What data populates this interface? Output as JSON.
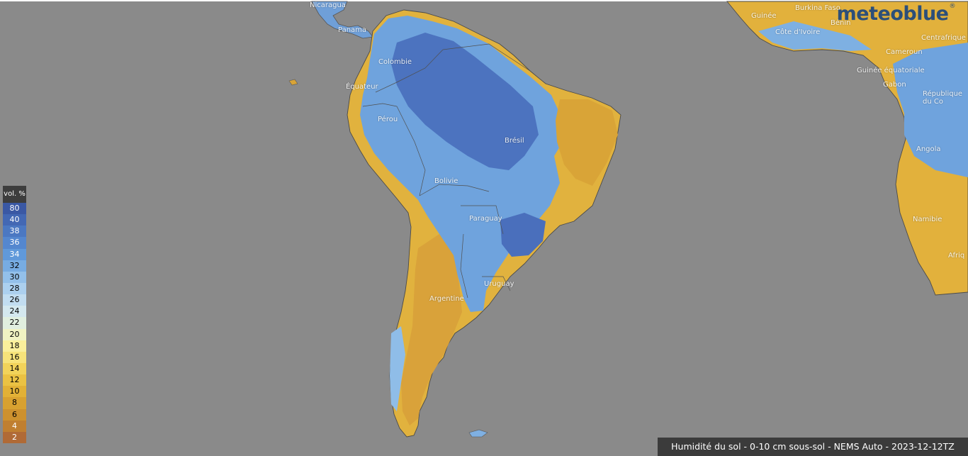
{
  "brand": {
    "name": "meteoblue",
    "mark": "®"
  },
  "caption": "Humidité du sol - 0-10 cm sous-sol - NEMS Auto - 2023-12-12TZ",
  "legend": {
    "unit": "vol. %",
    "entries": [
      {
        "value": "80",
        "color": "#3a58a4",
        "text_color": "#ffffff"
      },
      {
        "value": "40",
        "color": "#4368b4",
        "text_color": "#ffffff"
      },
      {
        "value": "38",
        "color": "#4b78c2",
        "text_color": "#ffffff"
      },
      {
        "value": "36",
        "color": "#5487cf",
        "text_color": "#ffffff"
      },
      {
        "value": "34",
        "color": "#6099da",
        "text_color": "#ffffff"
      },
      {
        "value": "32",
        "color": "#77ace2",
        "text_color": "#000000"
      },
      {
        "value": "30",
        "color": "#93c0ea",
        "text_color": "#000000"
      },
      {
        "value": "28",
        "color": "#acd0ef",
        "text_color": "#000000"
      },
      {
        "value": "26",
        "color": "#c2ddf1",
        "text_color": "#000000"
      },
      {
        "value": "24",
        "color": "#d4e8ef",
        "text_color": "#000000"
      },
      {
        "value": "22",
        "color": "#e1efdf",
        "text_color": "#000000"
      },
      {
        "value": "20",
        "color": "#f1f3c3",
        "text_color": "#000000"
      },
      {
        "value": "18",
        "color": "#faef9b",
        "text_color": "#000000"
      },
      {
        "value": "16",
        "color": "#f7e37a",
        "text_color": "#000000"
      },
      {
        "value": "14",
        "color": "#f2d35a",
        "text_color": "#000000"
      },
      {
        "value": "12",
        "color": "#ebc243",
        "text_color": "#000000"
      },
      {
        "value": "10",
        "color": "#e2b136",
        "text_color": "#000000"
      },
      {
        "value": "8",
        "color": "#d8a130",
        "text_color": "#000000"
      },
      {
        "value": "6",
        "color": "#cd912e",
        "text_color": "#000000"
      },
      {
        "value": "4",
        "color": "#c07f30",
        "text_color": "#ffffff"
      },
      {
        "value": "2",
        "color": "#b06a36",
        "text_color": "#ffffff"
      }
    ]
  },
  "countries": [
    {
      "id": "nicaragua",
      "name": "Nicaragua"
    },
    {
      "id": "panama",
      "name": "Panama"
    },
    {
      "id": "colombie",
      "name": "Colombie"
    },
    {
      "id": "equateur",
      "name": "Équateur"
    },
    {
      "id": "perou",
      "name": "Pérou"
    },
    {
      "id": "bresil",
      "name": "Brésil"
    },
    {
      "id": "bolivie",
      "name": "Bolivie"
    },
    {
      "id": "paraguay",
      "name": "Paraguay"
    },
    {
      "id": "uruguay",
      "name": "Uruguay"
    },
    {
      "id": "argentine",
      "name": "Argentine"
    },
    {
      "id": "guinee",
      "name": "Guinée"
    },
    {
      "id": "burkina-faso",
      "name": "Burkina Faso"
    },
    {
      "id": "cote-divoire",
      "name": "Côte d'Ivoire"
    },
    {
      "id": "benin",
      "name": "Bénin"
    },
    {
      "id": "centrafrique",
      "name": "Centrafrique"
    },
    {
      "id": "cameroun",
      "name": "Cameroun"
    },
    {
      "id": "guinee-equatoriale",
      "name": "Guinée équatoriale"
    },
    {
      "id": "gabon",
      "name": "Gabon"
    },
    {
      "id": "rdc",
      "name": "République du Co"
    },
    {
      "id": "angola",
      "name": "Angola"
    },
    {
      "id": "namibie",
      "name": "Namibie"
    },
    {
      "id": "afrique",
      "name": "Afriq"
    }
  ]
}
